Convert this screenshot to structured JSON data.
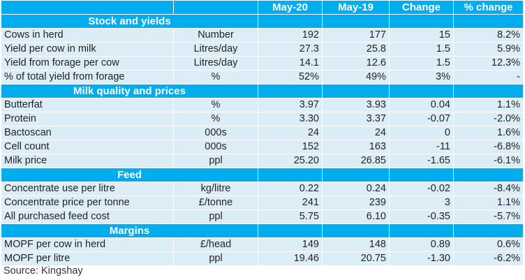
{
  "header": {
    "label": "",
    "unit": "",
    "columns": [
      "May-20",
      "May-19",
      "Change",
      "% change"
    ]
  },
  "sections": [
    {
      "title": "Stock and yields",
      "rows": [
        {
          "label": "Cows in herd",
          "unit": "Number",
          "values": [
            "192",
            "177",
            "15",
            "8.2%"
          ]
        },
        {
          "label": "Yield per cow in milk",
          "unit": "Litres/day",
          "values": [
            "27.3",
            "25.8",
            "1.5",
            "5.9%"
          ]
        },
        {
          "label": "Yield from forage per cow",
          "unit": "Litres/day",
          "values": [
            "14.1",
            "12.6",
            "1.5",
            "12.3%"
          ]
        },
        {
          "label": "% of total yield from forage",
          "unit": "%",
          "values": [
            "52%",
            "49%",
            "3%",
            "-"
          ]
        }
      ]
    },
    {
      "title": "Milk quality and prices",
      "rows": [
        {
          "label": "Butterfat",
          "unit": "%",
          "values": [
            "3.97",
            "3.93",
            "0.04",
            "1.1%"
          ]
        },
        {
          "label": "Protein",
          "unit": "%",
          "values": [
            "3.30",
            "3.37",
            "-0.07",
            "-2.0%"
          ]
        },
        {
          "label": "Bactoscan",
          "unit": "000s",
          "values": [
            "24",
            "24",
            "0",
            "1.6%"
          ]
        },
        {
          "label": "Cell count",
          "unit": "000s",
          "values": [
            "152",
            "163",
            "-11",
            "-6.8%"
          ]
        },
        {
          "label": "Milk price",
          "unit": "ppl",
          "values": [
            "25.20",
            "26.85",
            "-1.65",
            "-6.1%"
          ]
        }
      ]
    },
    {
      "title": "Feed",
      "rows": [
        {
          "label": "Concentrate use per litre",
          "unit": "kg/litre",
          "values": [
            "0.22",
            "0.24",
            "-0.02",
            "-8.4%"
          ]
        },
        {
          "label": "Concentrate price per tonne",
          "unit": "£/tonne",
          "values": [
            "241",
            "239",
            "3",
            "1.1%"
          ]
        },
        {
          "label": "All purchased feed cost",
          "unit": "ppl",
          "values": [
            "5.75",
            "6.10",
            "-0.35",
            "-5.7%"
          ]
        }
      ]
    },
    {
      "title": "Margins",
      "rows": [
        {
          "label": "MOPF per cow in herd",
          "unit": "£/head",
          "values": [
            "149",
            "148",
            "0.89",
            "0.6%"
          ]
        },
        {
          "label": "MOPF per litre",
          "unit": "ppl",
          "values": [
            "19.46",
            "20.75",
            "-1.30",
            "-6.2%"
          ]
        }
      ]
    }
  ],
  "source": "Source: Kingshay",
  "colors": {
    "header_bg": "#00aeef",
    "row_bg": "#dbeef8",
    "header_text": "#ffffff"
  }
}
